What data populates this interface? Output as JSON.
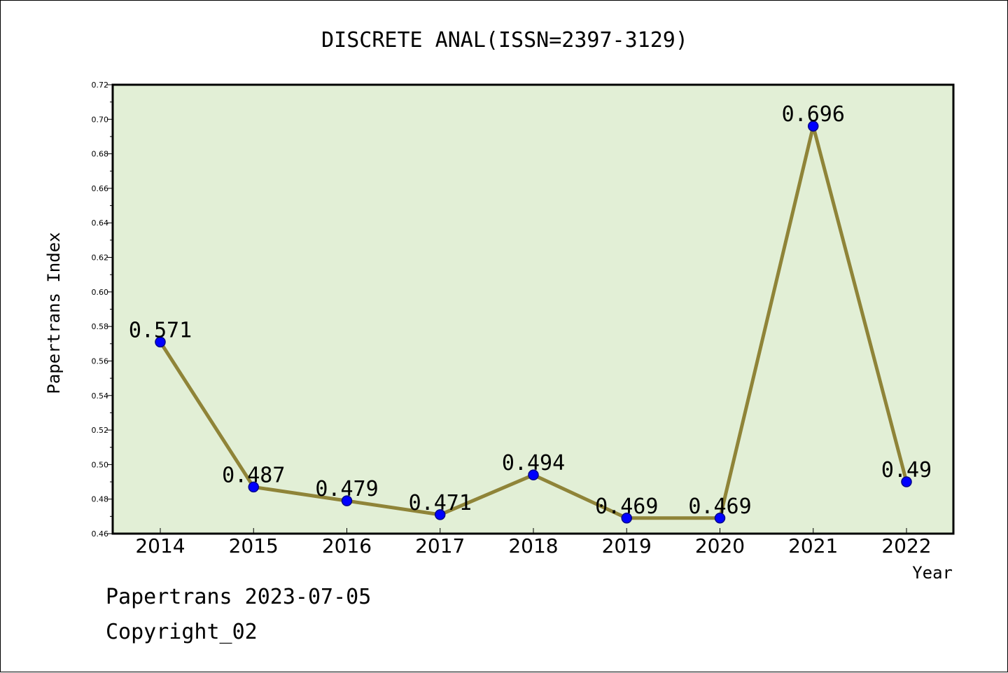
{
  "chart_data": {
    "type": "line",
    "title": "DISCRETE ANAL(ISSN=2397-3129)",
    "xlabel": "Year",
    "ylabel": "Papertrans Index",
    "categories": [
      "2014",
      "2015",
      "2016",
      "2017",
      "2018",
      "2019",
      "2020",
      "2021",
      "2022"
    ],
    "series": [
      {
        "values": [
          0.571,
          0.487,
          0.479,
          0.471,
          0.494,
          0.469,
          0.469,
          0.696,
          0.49
        ],
        "data_labels": [
          "0.571",
          "0.487",
          "0.479",
          "0.471",
          "0.494",
          "0.469",
          "0.469",
          "0.696",
          "0.49"
        ]
      }
    ],
    "ylim": [
      0.46,
      0.72
    ],
    "yticks": [
      "0.46",
      "0.48",
      "0.50",
      "0.52",
      "0.54",
      "0.56",
      "0.58",
      "0.60",
      "0.62",
      "0.64",
      "0.66",
      "0.68",
      "0.70",
      "0.72"
    ],
    "grid": false,
    "legend": "none",
    "colors": {
      "plot_background": "#e2efd6",
      "line": "#8f8438",
      "marker_fill": "#0000ff",
      "marker_edge": "#00008b",
      "frame": "#000000"
    }
  },
  "footer": {
    "date_line": "Papertrans 2023-07-05",
    "copyright_line": "Copyright_02"
  }
}
